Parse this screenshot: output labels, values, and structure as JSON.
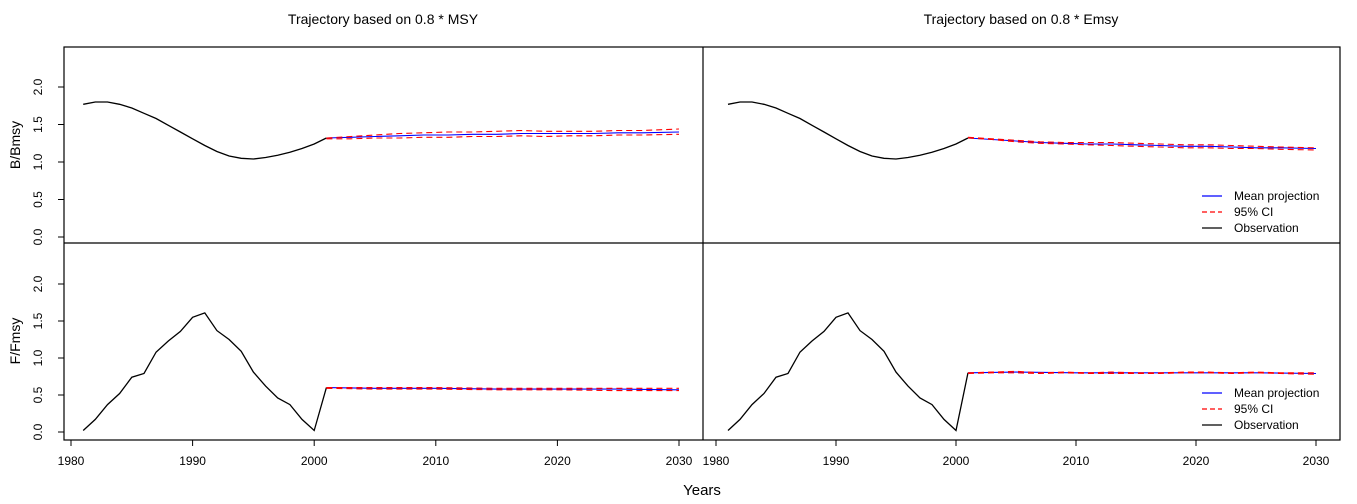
{
  "colors": {
    "mean": "#0000ff",
    "ci": "#ff0000",
    "obs": "#000000"
  },
  "figure": {
    "xlabel": "Years",
    "ylabel_top": "B/Bmsy",
    "ylabel_bottom": "F/Fmsy"
  },
  "legend": {
    "placement": "bottom-right of each right-hand panel",
    "entries": [
      "Mean projection",
      "95% CI",
      "Observation"
    ]
  },
  "chart_data": [
    {
      "type": "line",
      "panel": "top-left",
      "title": "Trajectory based on 0.8 * MSY",
      "xlabel": "",
      "ylabel": "B/Bmsy",
      "xlim": [
        1980,
        2030
      ],
      "ylim": [
        0,
        2.4
      ],
      "xticks": [
        1980,
        1990,
        2000,
        2010,
        2020,
        2030
      ],
      "yticks": [
        "0.0",
        "0.5",
        "1.0",
        "1.5",
        "2.0"
      ],
      "series": [
        {
          "role": "obs",
          "x": [
            1981,
            1982,
            1983,
            1984,
            1985,
            1986,
            1987,
            1988,
            1989,
            1990,
            1991,
            1992,
            1993,
            1994,
            1995,
            1996,
            1997,
            1998,
            1999,
            2000,
            2001
          ],
          "values": [
            1.77,
            1.8,
            1.8,
            1.77,
            1.72,
            1.65,
            1.58,
            1.49,
            1.4,
            1.31,
            1.22,
            1.14,
            1.08,
            1.05,
            1.04,
            1.06,
            1.09,
            1.13,
            1.18,
            1.24,
            1.32
          ]
        },
        {
          "role": "mean",
          "x": [
            2001,
            2003,
            2005,
            2007,
            2009,
            2011,
            2013,
            2015,
            2017,
            2019,
            2021,
            2023,
            2025,
            2027,
            2030
          ],
          "values": [
            1.32,
            1.33,
            1.34,
            1.35,
            1.36,
            1.36,
            1.37,
            1.37,
            1.38,
            1.38,
            1.38,
            1.38,
            1.39,
            1.39,
            1.4
          ]
        },
        {
          "role": "ci",
          "x": [
            2001,
            2003,
            2005,
            2007,
            2009,
            2011,
            2013,
            2015,
            2017,
            2019,
            2021,
            2023,
            2025,
            2027,
            2030
          ],
          "values": [
            1.32,
            1.34,
            1.36,
            1.38,
            1.39,
            1.4,
            1.4,
            1.41,
            1.42,
            1.41,
            1.41,
            1.41,
            1.42,
            1.42,
            1.44
          ]
        },
        {
          "role": "ci",
          "x": [
            2001,
            2003,
            2005,
            2007,
            2009,
            2011,
            2013,
            2015,
            2017,
            2019,
            2021,
            2023,
            2025,
            2027,
            2030
          ],
          "values": [
            1.31,
            1.31,
            1.32,
            1.32,
            1.33,
            1.33,
            1.34,
            1.34,
            1.35,
            1.34,
            1.35,
            1.35,
            1.36,
            1.36,
            1.37
          ]
        }
      ]
    },
    {
      "type": "line",
      "panel": "top-right",
      "title": "Trajectory based on 0.8 * Emsy",
      "xlabel": "",
      "ylabel": "",
      "xlim": [
        1980,
        2030
      ],
      "ylim": [
        0,
        2.4
      ],
      "xticks": [
        1980,
        1990,
        2000,
        2010,
        2020,
        2030
      ],
      "yticks": [],
      "series": [
        {
          "role": "obs",
          "x": [
            1981,
            1982,
            1983,
            1984,
            1985,
            1986,
            1987,
            1988,
            1989,
            1990,
            1991,
            1992,
            1993,
            1994,
            1995,
            1996,
            1997,
            1998,
            1999,
            2000,
            2001
          ],
          "values": [
            1.77,
            1.8,
            1.8,
            1.77,
            1.72,
            1.65,
            1.58,
            1.49,
            1.4,
            1.31,
            1.22,
            1.14,
            1.08,
            1.05,
            1.04,
            1.06,
            1.09,
            1.13,
            1.18,
            1.24,
            1.32
          ]
        },
        {
          "role": "mean",
          "x": [
            2001,
            2003,
            2005,
            2007,
            2009,
            2011,
            2013,
            2015,
            2017,
            2019,
            2021,
            2023,
            2025,
            2027,
            2030
          ],
          "values": [
            1.32,
            1.3,
            1.28,
            1.26,
            1.25,
            1.24,
            1.24,
            1.23,
            1.22,
            1.21,
            1.21,
            1.2,
            1.19,
            1.19,
            1.18
          ]
        },
        {
          "role": "ci",
          "x": [
            2001,
            2003,
            2005,
            2007,
            2009,
            2011,
            2013,
            2015,
            2017,
            2019,
            2021,
            2023,
            2025,
            2027,
            2030
          ],
          "values": [
            1.33,
            1.31,
            1.29,
            1.27,
            1.26,
            1.26,
            1.26,
            1.25,
            1.24,
            1.23,
            1.23,
            1.22,
            1.21,
            1.2,
            1.19
          ]
        },
        {
          "role": "ci",
          "x": [
            2001,
            2003,
            2005,
            2007,
            2009,
            2011,
            2013,
            2015,
            2017,
            2019,
            2021,
            2023,
            2025,
            2027,
            2030
          ],
          "values": [
            1.32,
            1.3,
            1.27,
            1.25,
            1.24,
            1.23,
            1.22,
            1.21,
            1.2,
            1.19,
            1.19,
            1.18,
            1.18,
            1.17,
            1.16
          ]
        }
      ]
    },
    {
      "type": "line",
      "panel": "bottom-left",
      "title": "",
      "xlabel": "Years",
      "ylabel": "F/Fmsy",
      "xlim": [
        1980,
        2030
      ],
      "ylim": [
        -0.1,
        2.4
      ],
      "xticks": [
        1980,
        1990,
        2000,
        2010,
        2020,
        2030
      ],
      "yticks": [
        "0.0",
        "0.5",
        "1.0",
        "1.5",
        "2.0"
      ],
      "series": [
        {
          "role": "obs",
          "x": [
            1981,
            1982,
            1983,
            1984,
            1985,
            1986,
            1987,
            1988,
            1989,
            1990,
            1991,
            1992,
            1993,
            1994,
            1995,
            1996,
            1997,
            1998,
            1999,
            2000,
            2001
          ],
          "values": [
            0.02,
            0.17,
            0.37,
            0.52,
            0.74,
            0.79,
            1.08,
            1.23,
            1.36,
            1.55,
            1.61,
            1.37,
            1.25,
            1.09,
            0.81,
            0.62,
            0.46,
            0.37,
            0.17,
            0.02,
            0.6
          ]
        },
        {
          "role": "mean",
          "x": [
            2001,
            2005,
            2010,
            2015,
            2020,
            2025,
            2030
          ],
          "values": [
            0.6,
            0.59,
            0.59,
            0.58,
            0.58,
            0.58,
            0.57
          ]
        },
        {
          "role": "ci",
          "x": [
            2001,
            2005,
            2010,
            2015,
            2020,
            2025,
            2030
          ],
          "values": [
            0.6,
            0.6,
            0.6,
            0.59,
            0.59,
            0.59,
            0.59
          ]
        },
        {
          "role": "ci",
          "x": [
            2001,
            2005,
            2010,
            2015,
            2020,
            2025,
            2030
          ],
          "values": [
            0.59,
            0.58,
            0.58,
            0.57,
            0.57,
            0.56,
            0.56
          ]
        }
      ]
    },
    {
      "type": "line",
      "panel": "bottom-right",
      "title": "",
      "xlabel": "Years",
      "ylabel": "",
      "xlim": [
        1980,
        2030
      ],
      "ylim": [
        -0.1,
        2.4
      ],
      "xticks": [
        1980,
        1990,
        2000,
        2010,
        2020,
        2030
      ],
      "yticks": [],
      "series": [
        {
          "role": "obs",
          "x": [
            1981,
            1982,
            1983,
            1984,
            1985,
            1986,
            1987,
            1988,
            1989,
            1990,
            1991,
            1992,
            1993,
            1994,
            1995,
            1996,
            1997,
            1998,
            1999,
            2000,
            2001
          ],
          "values": [
            0.02,
            0.17,
            0.37,
            0.52,
            0.74,
            0.79,
            1.08,
            1.23,
            1.36,
            1.55,
            1.61,
            1.37,
            1.25,
            1.09,
            0.81,
            0.62,
            0.46,
            0.37,
            0.17,
            0.02,
            0.8
          ]
        },
        {
          "role": "mean",
          "x": [
            2001,
            2005,
            2010,
            2015,
            2020,
            2025,
            2030
          ],
          "values": [
            0.8,
            0.81,
            0.8,
            0.8,
            0.8,
            0.8,
            0.79
          ]
        },
        {
          "role": "ci",
          "x": [
            2001,
            2003,
            2005,
            2007,
            2009,
            2011,
            2013,
            2015,
            2017,
            2019,
            2021,
            2023,
            2025,
            2027,
            2030
          ],
          "values": [
            0.8,
            0.81,
            0.82,
            0.8,
            0.81,
            0.8,
            0.81,
            0.8,
            0.8,
            0.81,
            0.81,
            0.8,
            0.81,
            0.8,
            0.8
          ]
        },
        {
          "role": "ci",
          "x": [
            2001,
            2003,
            2005,
            2007,
            2009,
            2011,
            2013,
            2015,
            2017,
            2019,
            2021,
            2023,
            2025,
            2027,
            2030
          ],
          "values": [
            0.79,
            0.8,
            0.8,
            0.79,
            0.8,
            0.79,
            0.79,
            0.79,
            0.79,
            0.8,
            0.8,
            0.79,
            0.8,
            0.79,
            0.78
          ]
        }
      ]
    }
  ]
}
